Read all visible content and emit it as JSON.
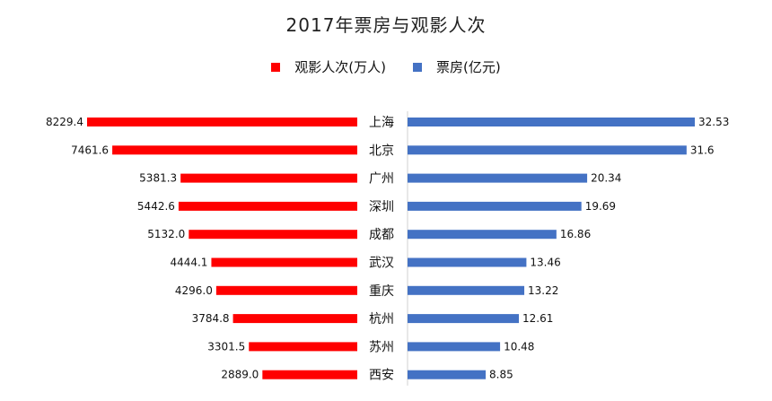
{
  "chart_data": {
    "type": "bar",
    "title": "2017年票房与观影人次",
    "categories": [
      "上海",
      "北京",
      "广州",
      "深圳",
      "成都",
      "武汉",
      "重庆",
      "杭州",
      "苏州",
      "西安"
    ],
    "series": [
      {
        "name": "观影人次(万人)",
        "color": "#ff0000",
        "values": [
          8229.4,
          7461.6,
          5381.3,
          5442.6,
          5132.0,
          4444.1,
          4296.0,
          3784.8,
          3301.5,
          2889.0
        ],
        "labels": [
          "8229.4",
          "7461.6",
          "5381.3",
          "5442.6",
          "5132.0",
          "4444.1",
          "4296.0",
          "3784.8",
          "3301.5",
          "2889.0"
        ]
      },
      {
        "name": "票房(亿元)",
        "color": "#4472c4",
        "values": [
          32.53,
          31.6,
          20.34,
          19.69,
          16.86,
          13.46,
          13.22,
          12.61,
          10.48,
          8.85
        ],
        "labels": [
          "32.53",
          "31.6",
          "20.34",
          "19.69",
          "16.86",
          "13.46",
          "13.22",
          "12.61",
          "10.48",
          "8.85"
        ]
      }
    ],
    "legend_position": "top",
    "grid": false
  }
}
